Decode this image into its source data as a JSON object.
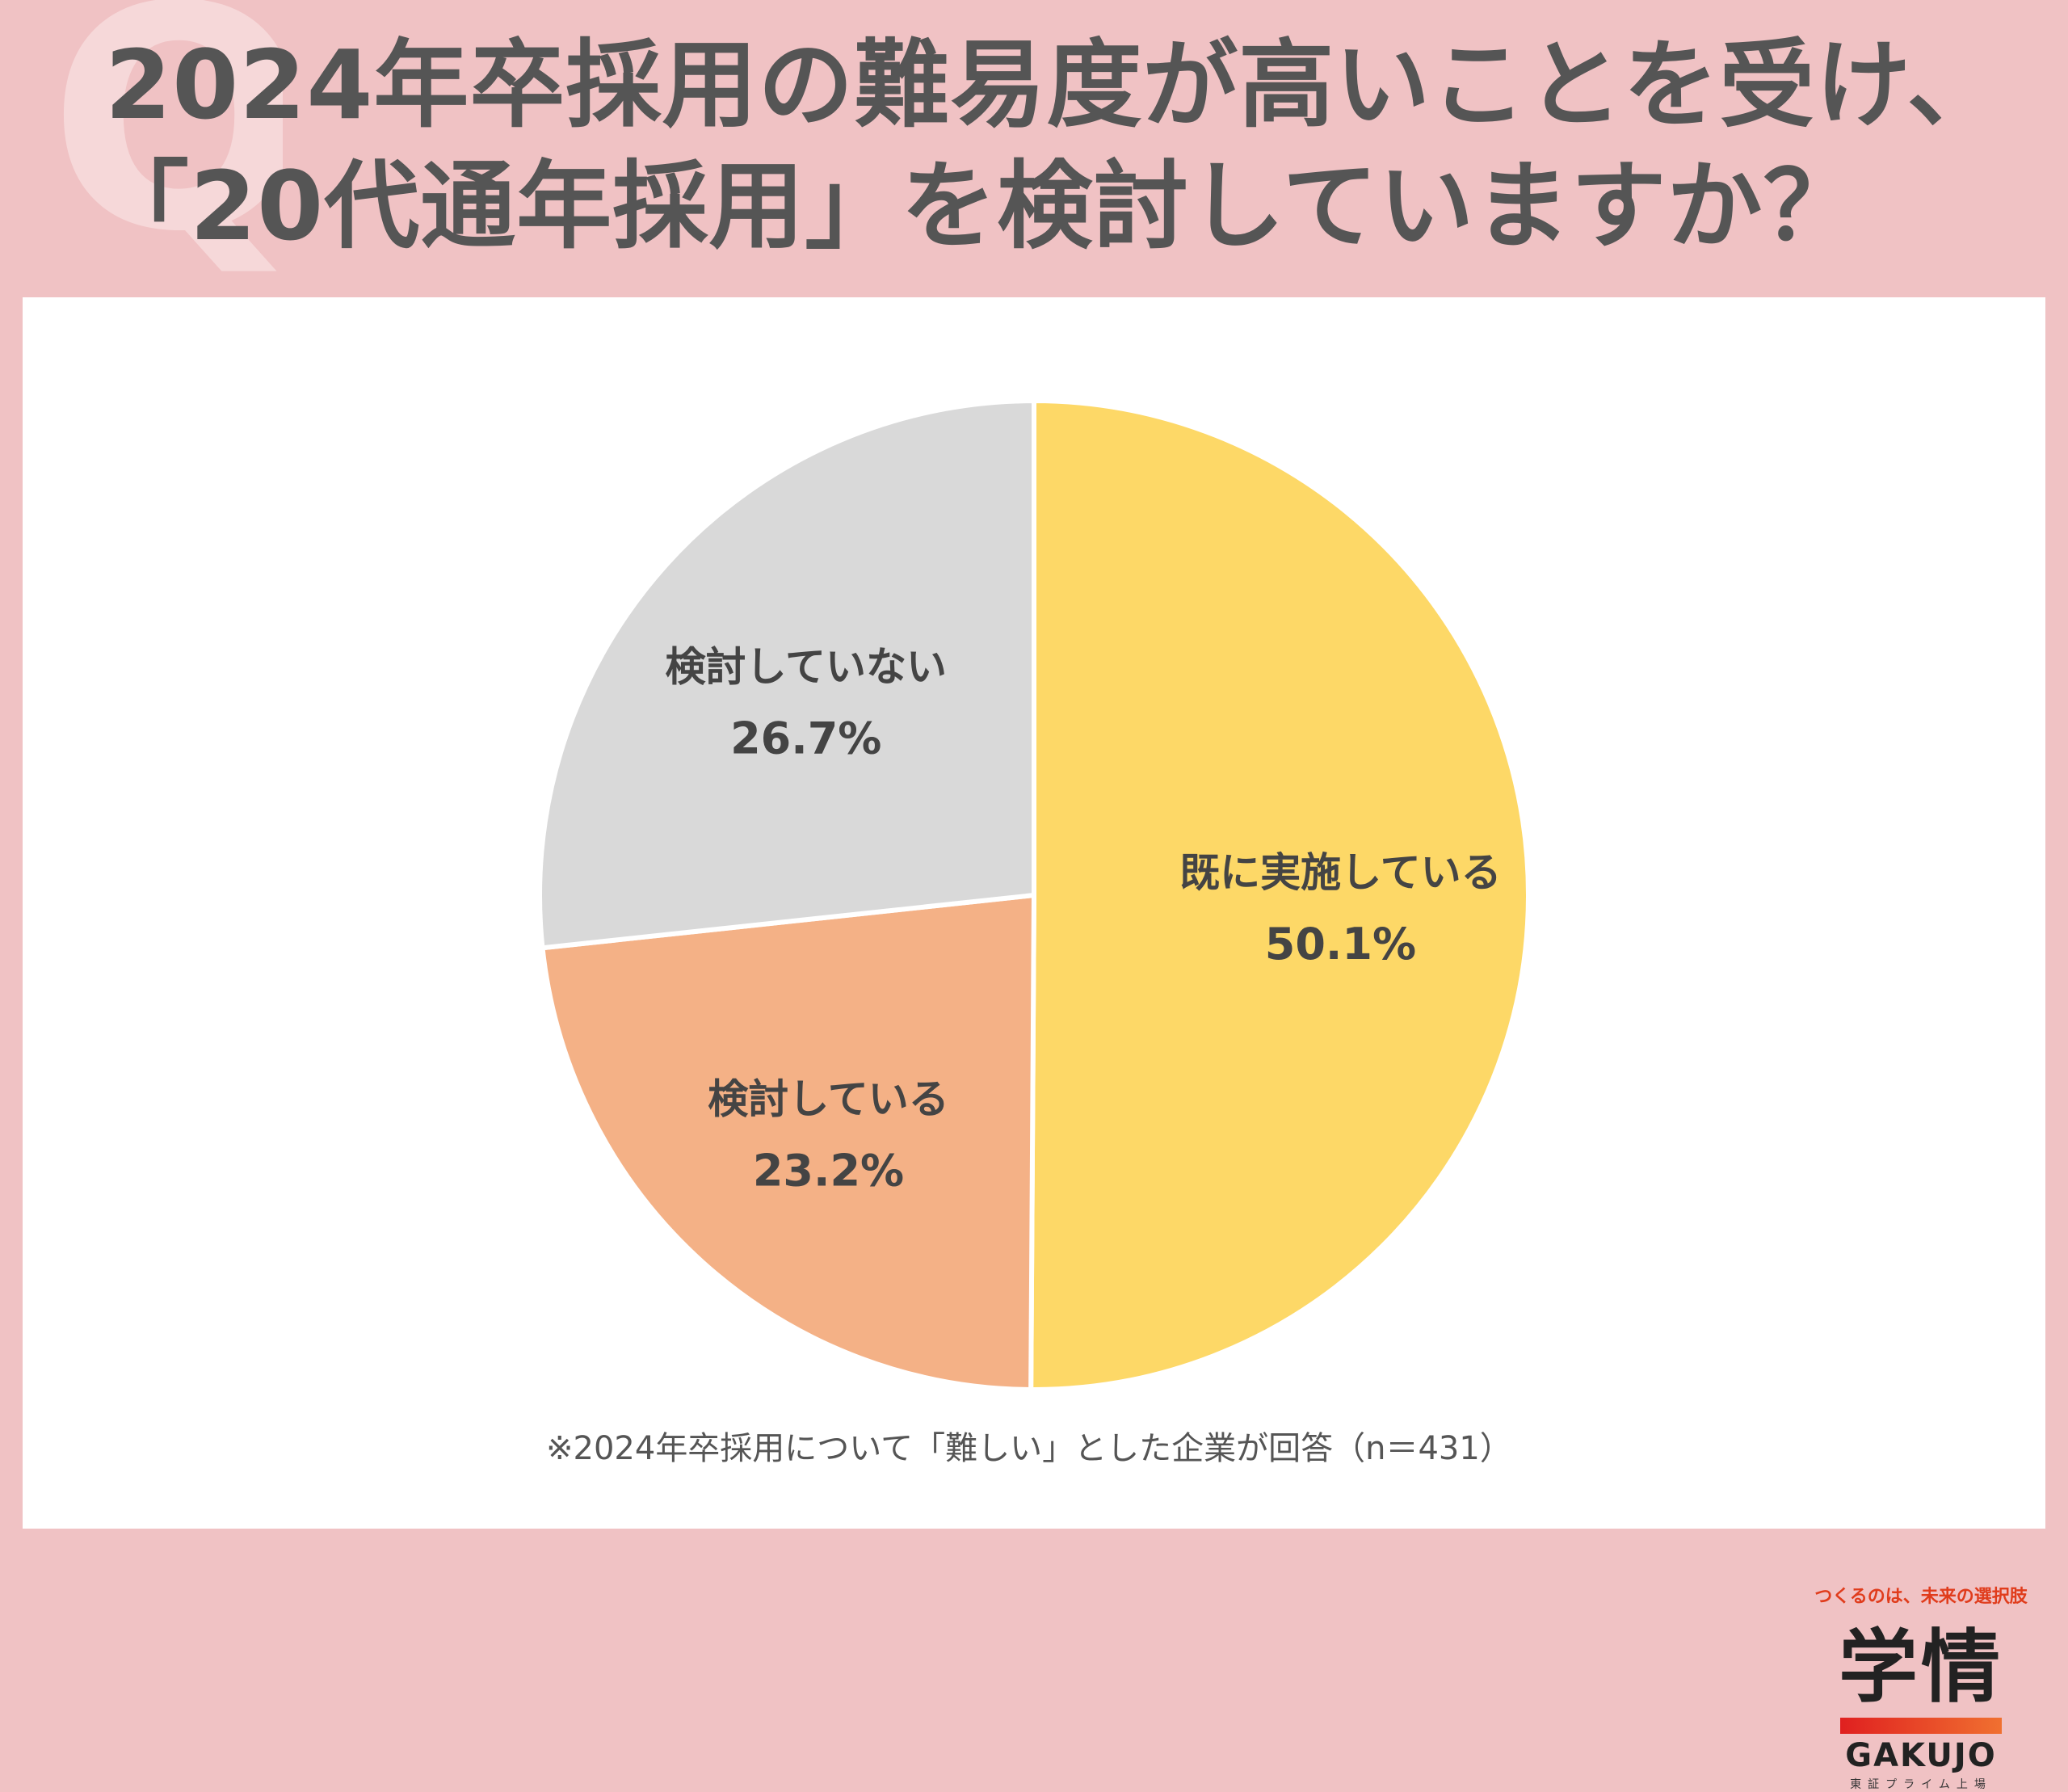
{
  "header": {
    "title_line1": "2024年卒採用の難易度が高いことを受け、",
    "title_line2": "「20代通年採用」を検討していますか？",
    "q_mark": "Q"
  },
  "chart_data": {
    "type": "pie",
    "start_angle_deg": 0,
    "direction": "clockwise",
    "slices": [
      {
        "label": "既に実施している",
        "value": 50.1,
        "value_label": "50.1%",
        "color": "#fdd867"
      },
      {
        "label": "検討している",
        "value": 23.2,
        "value_label": "23.2%",
        "color": "#f4b186"
      },
      {
        "label": "検討していない",
        "value": 26.7,
        "value_label": "26.7%",
        "color": "#d9d9d9"
      }
    ]
  },
  "footnote": "※2024年卒採用について「難しい」とした企業が回答（n＝431）",
  "logo": {
    "tagline": "つくるのは、未来の選択肢",
    "kanji": "学情",
    "english": "GAKUJO",
    "sub": "東証プライム上場"
  }
}
